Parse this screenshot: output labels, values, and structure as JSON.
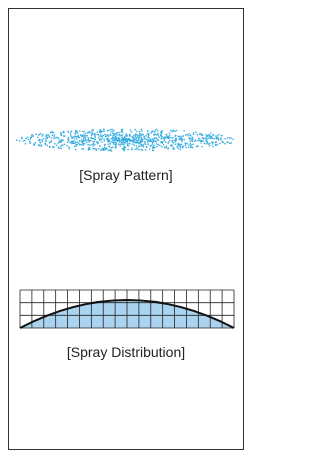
{
  "pattern_label": "[Spray Pattern]",
  "distribution_label": "[Spray Distribution]"
}
